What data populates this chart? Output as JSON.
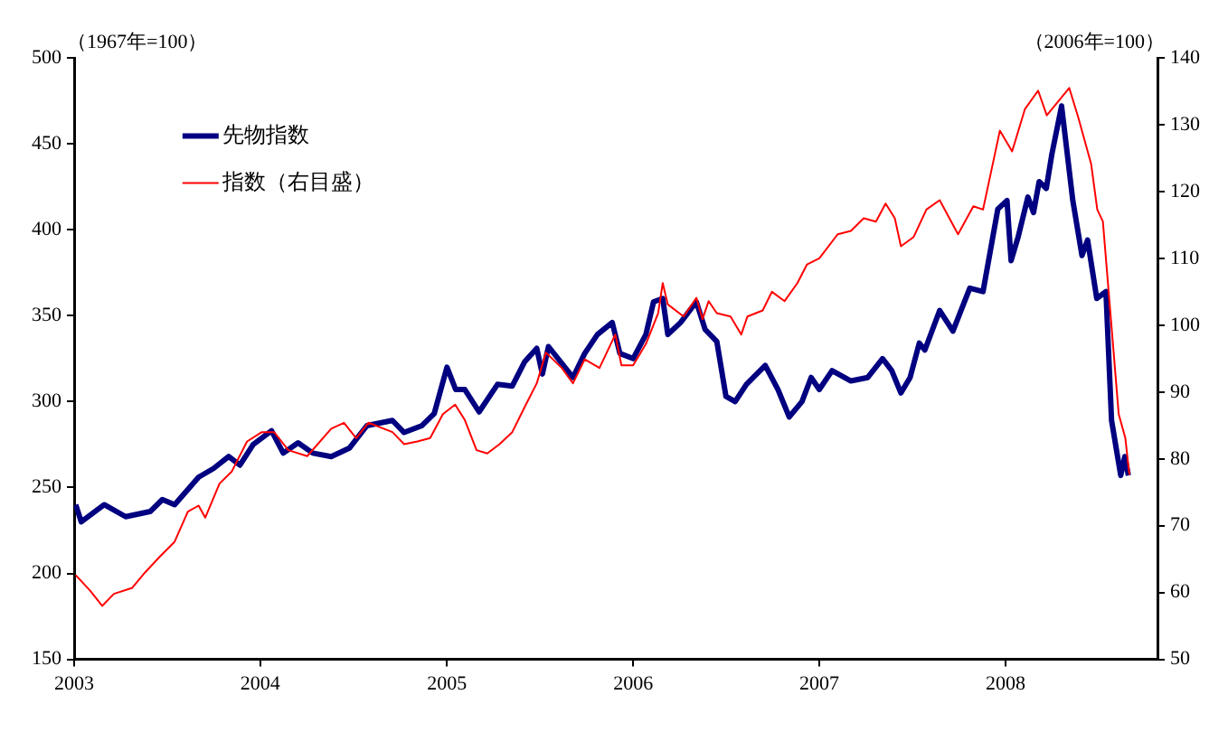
{
  "chart_data": {
    "type": "line",
    "ylabel": "（1967年=100）",
    "y2label": "（2006年=100）",
    "xlim": [
      "2003-01-01",
      "2008-10-25"
    ],
    "xticks": [
      "2003",
      "2004",
      "2005",
      "2006",
      "2007",
      "2008"
    ],
    "ylim": [
      150,
      500
    ],
    "yticks": [
      150,
      200,
      250,
      300,
      350,
      400,
      450,
      500
    ],
    "y2lim": [
      50,
      140
    ],
    "y2ticks": [
      50,
      60,
      70,
      80,
      90,
      100,
      110,
      120,
      130,
      140
    ],
    "legend": "top left",
    "marker": "none",
    "line_style": "solid",
    "series": [
      {
        "name": "先物指数",
        "color": "#000080",
        "x": [
          "2003-01-04",
          "2003-01-15",
          "2003-03-01",
          "2003-04-12",
          "2003-05-30",
          "2003-06-23",
          "2003-07-17",
          "2003-09-02",
          "2003-10-01",
          "2003-10-31",
          "2003-11-22",
          "2003-12-18",
          "2004-01-23",
          "2004-02-15",
          "2004-03-15",
          "2004-04-13",
          "2004-05-19",
          "2004-06-24",
          "2004-07-28",
          "2004-09-16",
          "2004-10-09",
          "2004-11-13",
          "2004-12-07",
          "2005-01-01",
          "2005-01-18",
          "2005-02-05",
          "2005-03-05",
          "2005-04-10",
          "2005-05-09",
          "2005-06-02",
          "2005-06-26",
          "2005-07-07",
          "2005-07-19",
          "2005-09-05",
          "2005-09-28",
          "2005-10-23",
          "2005-11-21",
          "2005-12-06",
          "2006-01-01",
          "2006-01-26",
          "2006-02-10",
          "2006-02-28",
          "2006-03-10",
          "2006-04-04",
          "2006-05-05",
          "2006-05-22",
          "2006-06-14",
          "2006-07-02",
          "2006-07-20",
          "2006-08-11",
          "2006-09-17",
          "2006-10-12",
          "2006-11-03",
          "2006-11-28",
          "2006-12-16",
          "2007-01-01",
          "2007-01-26",
          "2007-03-04",
          "2007-04-06",
          "2007-05-05",
          "2007-05-23",
          "2007-06-10",
          "2007-06-28",
          "2007-07-16",
          "2007-07-27",
          "2007-08-25",
          "2007-09-20",
          "2007-10-23",
          "2007-11-18",
          "2007-12-17",
          "2008-01-04",
          "2008-01-12",
          "2008-01-26",
          "2008-02-14",
          "2008-02-25",
          "2008-03-07",
          "2008-03-21",
          "2008-04-01",
          "2008-04-20",
          "2008-05-12",
          "2008-05-30",
          "2008-06-10",
          "2008-06-28",
          "2008-07-16",
          "2008-07-27",
          "2008-08-14",
          "2008-08-22",
          "2008-08-29"
        ],
        "values": [
          240,
          230,
          240,
          233,
          236,
          243,
          240,
          256,
          261,
          268,
          263,
          275,
          283,
          270,
          276,
          270,
          268,
          273,
          286,
          289,
          282,
          286,
          293,
          320,
          307,
          307,
          294,
          310,
          309,
          323,
          331,
          316,
          332,
          314,
          328,
          339,
          346,
          328,
          325,
          339,
          358,
          360,
          339,
          346,
          358,
          342,
          335,
          303,
          300,
          310,
          321,
          307,
          291,
          300,
          314,
          307,
          318,
          312,
          314,
          325,
          318,
          305,
          314,
          334,
          330,
          353,
          341,
          366,
          364,
          412,
          417,
          382,
          396,
          419,
          410,
          428,
          424,
          444,
          472,
          417,
          385,
          394,
          360,
          364,
          289,
          257,
          268,
          257
        ]
      },
      {
        "name": "指数（右目盛）",
        "color": "#ff0000",
        "axis": "y2",
        "x": [
          "2003-01-04",
          "2003-02-01",
          "2003-02-25",
          "2003-03-20",
          "2003-04-25",
          "2003-05-20",
          "2003-06-17",
          "2003-07-17",
          "2003-08-12",
          "2003-09-02",
          "2003-09-15",
          "2003-10-13",
          "2003-11-06",
          "2003-12-06",
          "2004-01-04",
          "2004-01-28",
          "2004-02-25",
          "2004-04-02",
          "2004-05-19",
          "2004-06-13",
          "2004-07-07",
          "2004-07-31",
          "2004-09-16",
          "2004-10-09",
          "2004-11-04",
          "2004-11-29",
          "2004-12-24",
          "2005-01-17",
          "2005-02-05",
          "2005-02-28",
          "2005-03-21",
          "2005-04-14",
          "2005-05-09",
          "2005-06-02",
          "2005-06-26",
          "2005-07-14",
          "2005-08-14",
          "2005-09-05",
          "2005-09-28",
          "2005-10-27",
          "2005-11-27",
          "2005-12-09",
          "2006-01-01",
          "2006-01-26",
          "2006-02-19",
          "2006-02-28",
          "2006-03-10",
          "2006-04-10",
          "2006-05-05",
          "2006-05-17",
          "2006-05-29",
          "2006-06-14",
          "2006-07-11",
          "2006-08-01",
          "2006-08-13",
          "2006-09-12",
          "2006-09-30",
          "2006-10-25",
          "2006-11-19",
          "2006-12-08",
          "2007-01-01",
          "2007-02-06",
          "2007-03-04",
          "2007-03-29",
          "2007-04-22",
          "2007-05-11",
          "2007-05-29",
          "2007-06-10",
          "2007-07-05",
          "2007-07-30",
          "2007-08-25",
          "2007-09-30",
          "2007-10-30",
          "2007-11-18",
          "2007-12-21",
          "2008-01-14",
          "2008-02-08",
          "2008-03-05",
          "2008-03-22",
          "2008-05-05",
          "2008-05-23",
          "2008-06-17",
          "2008-06-29",
          "2008-07-10",
          "2008-08-10",
          "2008-08-23",
          "2008-08-31"
        ],
        "values": [
          62.6,
          60.3,
          58,
          59.8,
          60.7,
          63,
          65.3,
          67.6,
          72.1,
          73,
          71.2,
          76.3,
          78.1,
          82.6,
          84,
          84,
          81.3,
          80.4,
          84.5,
          85.4,
          83.1,
          85.4,
          84,
          82.2,
          82.6,
          83.1,
          86.7,
          88.1,
          85.8,
          81.3,
          80.8,
          82.2,
          84,
          87.7,
          91.3,
          95.9,
          93.6,
          91.3,
          94.9,
          93.6,
          98.6,
          94,
          94,
          97.2,
          101.8,
          106.3,
          103.1,
          101.3,
          104.1,
          100.9,
          103.6,
          101.8,
          101.3,
          98.6,
          101.3,
          102.2,
          105,
          103.6,
          106.3,
          109.1,
          110,
          113.6,
          114.1,
          116,
          115.5,
          118.2,
          116,
          111.8,
          113.2,
          117.3,
          118.7,
          113.6,
          117.8,
          117.3,
          129.1,
          126,
          132.3,
          135.1,
          131.4,
          135.5,
          131,
          124.1,
          117.3,
          115.5,
          86.7,
          83.1,
          77.6
        ]
      }
    ]
  }
}
